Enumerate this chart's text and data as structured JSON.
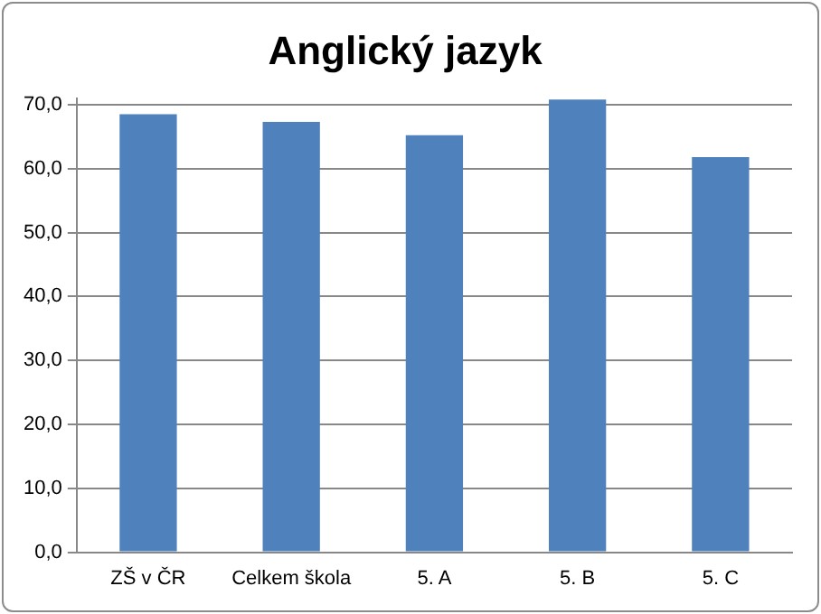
{
  "chart_data": {
    "type": "bar",
    "title": "Anglický jazyk",
    "categories": [
      "ZŠ v ČR",
      "Celkem škola",
      "5. A",
      "5. B",
      "5. C"
    ],
    "values": [
      68.5,
      67.3,
      65.2,
      70.8,
      61.8
    ],
    "color": "#4f81bd",
    "ylim": [
      0,
      71
    ],
    "yticks": [
      {
        "value": 0,
        "label": "0,0"
      },
      {
        "value": 10,
        "label": "10,0"
      },
      {
        "value": 20,
        "label": "20,0"
      },
      {
        "value": 30,
        "label": "30,0"
      },
      {
        "value": 40,
        "label": "40,0"
      },
      {
        "value": 50,
        "label": "50,0"
      },
      {
        "value": 60,
        "label": "60,0"
      },
      {
        "value": 70,
        "label": "70,0"
      }
    ],
    "grid": "y",
    "legend": false
  }
}
